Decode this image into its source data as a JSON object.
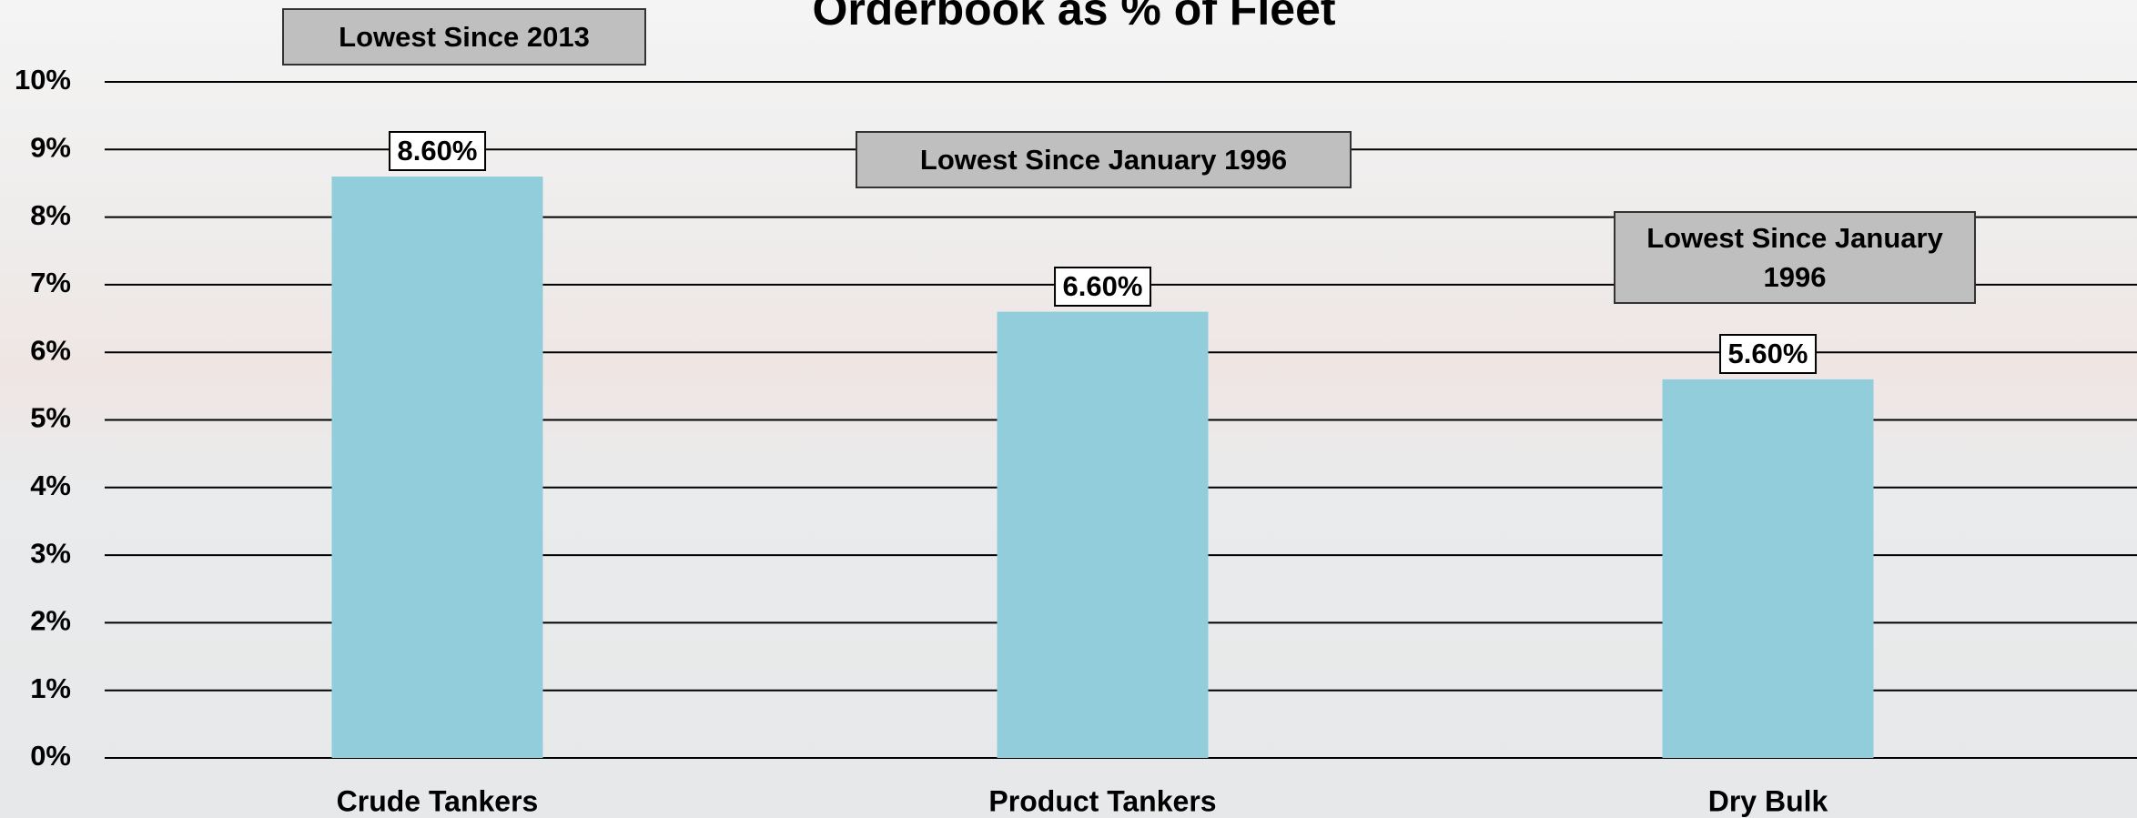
{
  "chart_data": {
    "type": "bar",
    "title": "Orderbook as % of Fleet",
    "categories": [
      "Crude Tankers",
      "Product Tankers",
      "Dry Bulk"
    ],
    "values": [
      8.6,
      6.6,
      5.6
    ],
    "value_labels": [
      "8.60%",
      "6.60%",
      "5.60%"
    ],
    "color": "#92cddc",
    "ylim": [
      0,
      10
    ],
    "yticks": [
      {
        "value": 0,
        "label": "0%"
      },
      {
        "value": 1,
        "label": "1%"
      },
      {
        "value": 2,
        "label": "2%"
      },
      {
        "value": 3,
        "label": "3%"
      },
      {
        "value": 4,
        "label": "4%"
      },
      {
        "value": 5,
        "label": "5%"
      },
      {
        "value": 6,
        "label": "6%"
      },
      {
        "value": 7,
        "label": "7%"
      },
      {
        "value": 8,
        "label": "8%"
      },
      {
        "value": 9,
        "label": "9%"
      },
      {
        "value": 10,
        "label": "10%"
      }
    ],
    "grid": true,
    "annotations": [
      "Lowest Since 2013",
      "Lowest Since January 1996",
      "Lowest Since January 1996"
    ]
  }
}
